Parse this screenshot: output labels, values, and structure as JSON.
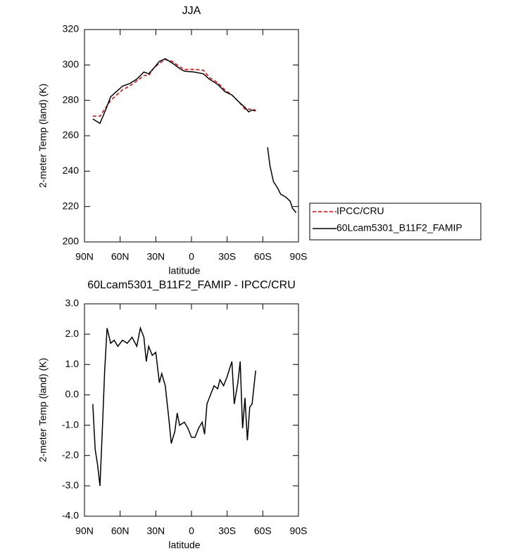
{
  "chart_data": [
    {
      "type": "line",
      "title": "JJA",
      "xlabel": "latitude",
      "ylabel": "2-meter Temp (land) (K)",
      "x": [
        83,
        77,
        72,
        68,
        63,
        58,
        52,
        46,
        40,
        36,
        32,
        27,
        22,
        16,
        10,
        6,
        -2,
        -10,
        -15,
        -22,
        -28,
        -34,
        -40,
        -45,
        -48,
        -51,
        -54,
        -59,
        -64,
        -66,
        -69,
        -72,
        -75,
        -79,
        -83,
        -85,
        -88
      ],
      "series": [
        {
          "name": "IPCC/CRU",
          "color": "#e00000",
          "line_style": "dashed",
          "values": [
            271,
            271,
            276,
            280,
            283,
            286,
            288,
            291,
            294,
            294,
            298,
            301,
            303,
            302,
            299,
            297.5,
            297.5,
            297,
            293,
            290,
            286,
            283,
            279,
            275,
            275,
            275,
            274.5,
            null,
            null,
            null,
            null,
            null,
            null,
            null,
            null,
            null,
            null
          ]
        },
        {
          "name": "60Lcam5301_B11F2_FAMIP",
          "color": "#000000",
          "line_style": "solid",
          "values": [
            269.5,
            267,
            275,
            282,
            285,
            288,
            289.5,
            292,
            296,
            295,
            298,
            302,
            303.5,
            301,
            298,
            296.5,
            296,
            295,
            292,
            289,
            285,
            283,
            279,
            276,
            273.5,
            274.5,
            274,
            null,
            253.5,
            243,
            234,
            231,
            227,
            225.5,
            223,
            219,
            216.5
          ]
        }
      ],
      "xlim": [
        90,
        -90
      ],
      "xticks": [
        {
          "value": 90,
          "label": "90N"
        },
        {
          "value": 60,
          "label": "60N"
        },
        {
          "value": 30,
          "label": "30N"
        },
        0,
        {
          "value": -30,
          "label": "30S"
        },
        {
          "value": -60,
          "label": "60S"
        },
        {
          "value": -90,
          "label": "90S"
        }
      ],
      "ylim": [
        200,
        320
      ],
      "yticks": [
        200,
        220,
        240,
        260,
        280,
        300,
        320
      ],
      "legend": "outside-right"
    },
    {
      "type": "line",
      "title": "60Lcam5301_B11F2_FAMIP - IPCC/CRU",
      "xlabel": "latitude",
      "ylabel": "2-meter Temp (land) (K)",
      "x": [
        83,
        81,
        79,
        77,
        75,
        73,
        71,
        68,
        65,
        62,
        58,
        54,
        50,
        46,
        43,
        40,
        38,
        36,
        33,
        30,
        27,
        25,
        22,
        19,
        17,
        14,
        12,
        10,
        6,
        3,
        0,
        -3,
        -6,
        -9,
        -11,
        -13,
        -16,
        -19,
        -22,
        -24,
        -27,
        -30,
        -34,
        -36,
        -39,
        -41,
        -43,
        -45,
        -47,
        -49,
        -51,
        -54
      ],
      "values": [
        -0.3,
        -1.8,
        -2.3,
        -3.0,
        -1.2,
        0.8,
        2.2,
        1.7,
        1.8,
        1.6,
        1.8,
        1.7,
        1.9,
        1.6,
        2.2,
        1.9,
        1.1,
        1.6,
        1.3,
        1.4,
        0.4,
        0.7,
        0.3,
        -0.8,
        -1.6,
        -1.2,
        -0.6,
        -1.0,
        -0.9,
        -1.1,
        -1.4,
        -1.4,
        -1.1,
        -0.9,
        -1.3,
        -0.3,
        0.0,
        0.3,
        0.2,
        0.5,
        0.3,
        0.6,
        1.1,
        -0.3,
        0.4,
        1.1,
        -1.1,
        -0.1,
        -1.5,
        -0.4,
        -0.3,
        0.8
      ],
      "color": "#000000",
      "xlim": [
        90,
        -90
      ],
      "xticks": [
        {
          "value": 90,
          "label": "90N"
        },
        {
          "value": 60,
          "label": "60N"
        },
        {
          "value": 30,
          "label": "30N"
        },
        0,
        {
          "value": -30,
          "label": "30S"
        },
        {
          "value": -60,
          "label": "60S"
        },
        {
          "value": -90,
          "label": "90S"
        }
      ],
      "ylim": [
        -4,
        3
      ],
      "yticks": [
        {
          "value": -4,
          "label": "-4.0"
        },
        {
          "value": -3,
          "label": "-3.0"
        },
        {
          "value": -2,
          "label": "-2.0"
        },
        {
          "value": -1,
          "label": "-1.0"
        },
        {
          "value": 0,
          "label": "0.0"
        },
        {
          "value": 1,
          "label": "1.0"
        },
        {
          "value": 2,
          "label": "2.0"
        },
        {
          "value": 3,
          "label": "3.0"
        }
      ]
    }
  ]
}
